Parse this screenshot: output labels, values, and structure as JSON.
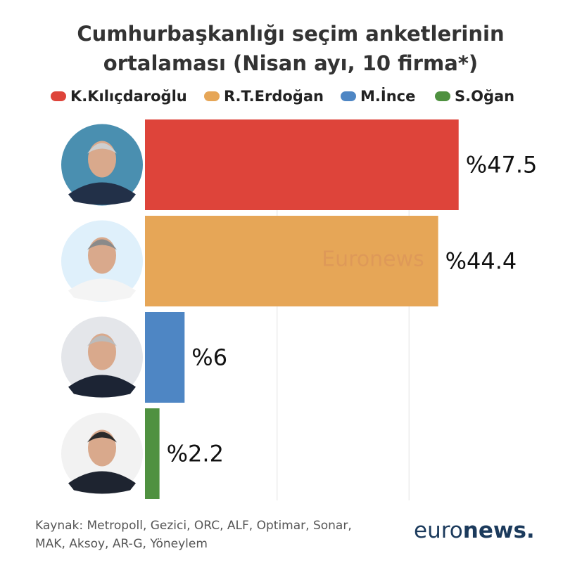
{
  "chart_data": {
    "type": "hbar",
    "title": [
      "Cumhurbaşkanlığı seçim anketlerinin",
      "ortalaması (Nisan ayı, 10 firma*)"
    ],
    "categories": [
      "K.Kılıçdaroğlu",
      "R.T.Erdoğan",
      "M.İnce",
      "S.Oğan"
    ],
    "values": [
      47.5,
      44.4,
      6,
      2.2
    ],
    "value_labels": [
      "%47.5",
      "%44.4",
      "%6",
      "%2.2"
    ],
    "colors": [
      "#de443a",
      "#e6a657",
      "#4e86c4",
      "#4f9140"
    ],
    "xlim": [
      0,
      60
    ],
    "xticks": [
      20,
      40
    ],
    "grid": true,
    "watermark": "Euronews",
    "source": [
      "Kaynak: Metropoll, Gezici, ORC, ALF, Optimar, Sonar,",
      "MAK, Aksoy, AR-G, Yöneylem"
    ],
    "logo": [
      "euro",
      "news."
    ]
  }
}
